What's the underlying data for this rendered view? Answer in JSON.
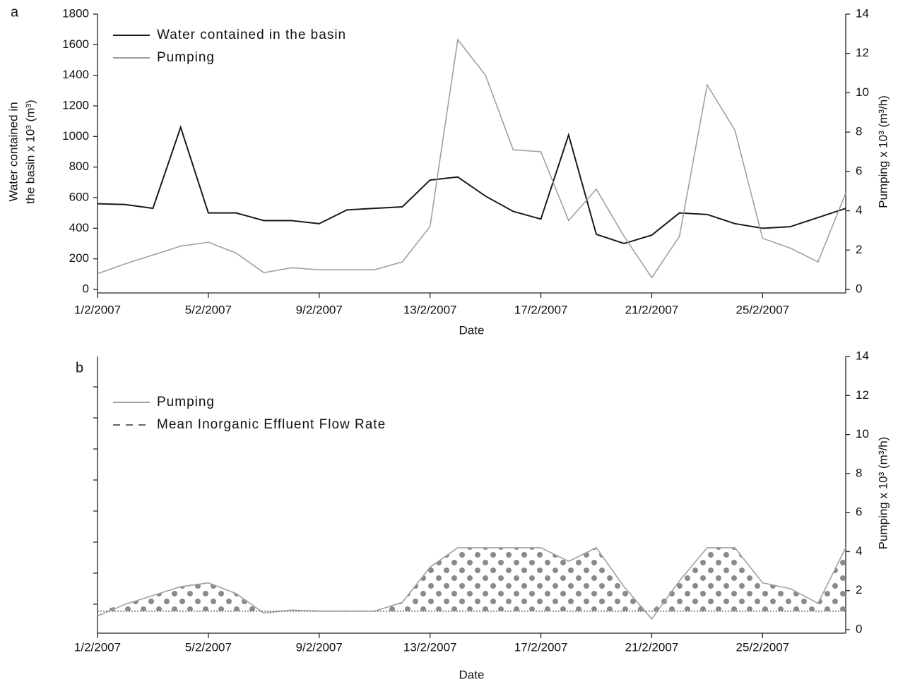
{
  "chart_data": [
    {
      "type": "line",
      "panel_label": "a",
      "x": [
        "1/2/2007",
        "2/2/2007",
        "3/2/2007",
        "4/2/2007",
        "5/2/2007",
        "6/2/2007",
        "7/2/2007",
        "8/2/2007",
        "9/2/2007",
        "10/2/2007",
        "11/2/2007",
        "12/2/2007",
        "13/2/2007",
        "14/2/2007",
        "15/2/2007",
        "16/2/2007",
        "17/2/2007",
        "18/2/2007",
        "19/2/2007",
        "20/2/2007",
        "21/2/2007",
        "22/2/2007",
        "23/2/2007",
        "24/2/2007",
        "25/2/2007",
        "26/2/2007",
        "27/2/2007",
        "28/2/2007"
      ],
      "xlim": [
        "1/2/2007",
        "28/2/2007"
      ],
      "xticks": [
        "1/2/2007",
        "5/2/2007",
        "9/2/2007",
        "13/2/2007",
        "17/2/2007",
        "21/2/2007",
        "25/2/2007"
      ],
      "xlabel": "Date",
      "ylabel": [
        "Water contained in",
        "the basin x 10³ (m³)"
      ],
      "y2label": "Pumping x 10³ (m³/h)",
      "ylim": [
        0,
        1800
      ],
      "yticks": [
        0,
        200,
        400,
        600,
        800,
        1000,
        1200,
        1400,
        1600,
        1800
      ],
      "y2lim": [
        0,
        14
      ],
      "y2ticks": [
        0,
        2,
        4,
        6,
        8,
        10,
        12,
        14
      ],
      "legend": "upper left",
      "series": [
        {
          "name": "Water contained in the basin",
          "color": "#1a1a1a",
          "axis": "y",
          "values": [
            560,
            555,
            530,
            1060,
            500,
            500,
            450,
            450,
            430,
            520,
            530,
            540,
            715,
            735,
            610,
            510,
            460,
            1010,
            360,
            300,
            355,
            500,
            490,
            430,
            400,
            410,
            470,
            530
          ]
        },
        {
          "name": "Pumping",
          "color": "#a0a0a0",
          "axis": "y2",
          "values": [
            0.8,
            1.3,
            1.75,
            2.2,
            2.4,
            1.85,
            0.85,
            1.1,
            1.0,
            1.0,
            1.0,
            1.4,
            3.2,
            12.7,
            10.9,
            7.1,
            7.0,
            3.5,
            5.1,
            2.7,
            0.6,
            2.7,
            10.4,
            8.1,
            2.6,
            2.1,
            1.4,
            4.9
          ]
        }
      ]
    },
    {
      "type": "line",
      "panel_label": "b",
      "x": [
        "1/2/2007",
        "2/2/2007",
        "3/2/2007",
        "4/2/2007",
        "5/2/2007",
        "6/2/2007",
        "7/2/2007",
        "8/2/2007",
        "9/2/2007",
        "10/2/2007",
        "11/2/2007",
        "12/2/2007",
        "13/2/2007",
        "14/2/2007",
        "15/2/2007",
        "16/2/2007",
        "17/2/2007",
        "18/2/2007",
        "19/2/2007",
        "20/2/2007",
        "21/2/2007",
        "22/2/2007",
        "23/2/2007",
        "24/2/2007",
        "25/2/2007",
        "26/2/2007",
        "27/2/2007",
        "28/2/2007"
      ],
      "xlim": [
        "1/2/2007",
        "28/2/2007"
      ],
      "xticks": [
        "1/2/2007",
        "5/2/2007",
        "9/2/2007",
        "13/2/2007",
        "17/2/2007",
        "21/2/2007",
        "25/2/2007"
      ],
      "xlabel": "Date",
      "y2label": "Pumping x 10³ (m³/h)",
      "y2lim": [
        0,
        14
      ],
      "y2ticks": [
        0,
        2,
        4,
        6,
        8,
        10,
        12,
        14
      ],
      "legend": "upper left",
      "series": [
        {
          "name": "Pumping",
          "color": "#a0a0a0",
          "axis": "y2",
          "line_style": "solid",
          "values": [
            0.7,
            1.3,
            1.75,
            2.2,
            2.4,
            1.85,
            0.85,
            1.0,
            0.95,
            0.95,
            0.95,
            1.4,
            3.2,
            4.2,
            4.2,
            4.2,
            4.2,
            3.5,
            4.2,
            2.2,
            0.55,
            2.5,
            4.2,
            4.2,
            2.4,
            2.1,
            1.35,
            4.2
          ]
        },
        {
          "name": "Mean Inorganic Effluent Flow Rate",
          "color": "#666666",
          "axis": "y2",
          "line_style": "dashed",
          "values": [
            0.95,
            0.95,
            0.95,
            0.95,
            0.95,
            0.95,
            0.95,
            0.95,
            0.95,
            0.95,
            0.95,
            0.95,
            0.95,
            0.95,
            0.95,
            0.95,
            0.95,
            0.95,
            0.95,
            0.95,
            0.95,
            0.95,
            0.95,
            0.95,
            0.95,
            0.95,
            0.95,
            0.95
          ]
        }
      ]
    }
  ]
}
